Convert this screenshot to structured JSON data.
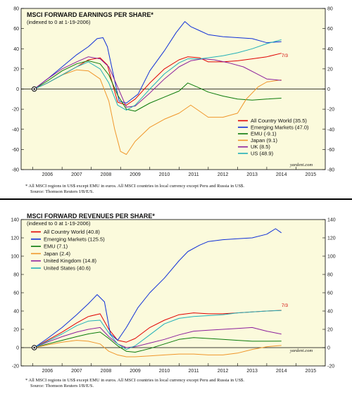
{
  "chart_data": [
    {
      "type": "line",
      "title": "MSCI FORWARD EARNINGS PER SHARE*",
      "subtitle": "(indexed to 0 at 1-19-2006)",
      "ylim": [
        -80,
        80
      ],
      "yticks": [
        -80,
        -60,
        -40,
        -20,
        0,
        20,
        40,
        60,
        80
      ],
      "xlim": [
        2005.6,
        2016.0
      ],
      "xticks": [
        "2006",
        "2007",
        "2008",
        "2009",
        "2010",
        "2011",
        "2012",
        "2013",
        "2014",
        "2015"
      ],
      "end_label": "7/3",
      "legend_position": "bottom-right",
      "footnote": "*  All MSCI regions in US$ except EMU in euros. All MSCI countries in local currency except Peru and Russia in US$.",
      "source": "Source: Thomson Reuters I/B/E/S.",
      "credit": "yardeni.com",
      "series": [
        {
          "name": "All Country World (35.5)",
          "color": "#e00000",
          "x": [
            2006.05,
            2006.5,
            2007.0,
            2007.5,
            2007.9,
            2008.3,
            2008.55,
            2008.7,
            2008.9,
            2009.2,
            2009.5,
            2010.0,
            2010.5,
            2011.0,
            2011.3,
            2011.7,
            2012.0,
            2012.5,
            2013.0,
            2013.5,
            2014.0,
            2014.5
          ],
          "y": [
            0,
            6,
            14,
            22,
            29,
            31,
            24,
            8,
            -13,
            -16,
            -10,
            6,
            20,
            29,
            32,
            31,
            27,
            27,
            28,
            30,
            32,
            35.5
          ]
        },
        {
          "name": "Emerging Markets (47.0)",
          "color": "#1030d8",
          "x": [
            2006.05,
            2006.5,
            2007.0,
            2007.5,
            2007.9,
            2008.2,
            2008.4,
            2008.55,
            2008.75,
            2008.95,
            2009.2,
            2009.6,
            2010.0,
            2010.5,
            2010.9,
            2011.2,
            2011.4,
            2011.7,
            2012.0,
            2012.5,
            2013.0,
            2013.5,
            2014.0,
            2014.5
          ],
          "y": [
            0,
            10,
            22,
            34,
            42,
            50,
            51,
            42,
            15,
            -12,
            -14,
            -5,
            18,
            38,
            56,
            67,
            62,
            58,
            54,
            52,
            51,
            50,
            46,
            47
          ]
        },
        {
          "name": "EMU (-9.1)",
          "color": "#0a7a0a",
          "x": [
            2006.05,
            2006.5,
            2007.0,
            2007.5,
            2007.9,
            2008.3,
            2008.6,
            2008.9,
            2009.2,
            2009.5,
            2010.0,
            2010.5,
            2011.0,
            2011.3,
            2011.7,
            2012.0,
            2012.5,
            2013.0,
            2013.5,
            2014.0,
            2014.5
          ],
          "y": [
            0,
            8,
            18,
            25,
            28,
            25,
            14,
            -6,
            -20,
            -22,
            -14,
            -8,
            -2,
            6,
            1,
            -3,
            -7,
            -10,
            -11,
            -10,
            -9.1
          ]
        },
        {
          "name": "Japan (9.1)",
          "color": "#f0962a",
          "x": [
            2006.05,
            2006.5,
            2007.0,
            2007.5,
            2007.9,
            2008.3,
            2008.6,
            2008.8,
            2009.0,
            2009.2,
            2009.5,
            2010.0,
            2010.5,
            2011.0,
            2011.4,
            2011.7,
            2012.0,
            2012.5,
            2013.0,
            2013.3,
            2013.7,
            2014.0,
            2014.5
          ],
          "y": [
            0,
            6,
            14,
            19,
            18,
            10,
            -12,
            -40,
            -62,
            -65,
            -52,
            -38,
            -30,
            -24,
            -16,
            -22,
            -28,
            -28,
            -24,
            -10,
            2,
            7,
            9.1
          ]
        },
        {
          "name": "UK (8.5)",
          "color": "#8c1f9c",
          "x": [
            2006.05,
            2006.5,
            2007.0,
            2007.5,
            2007.9,
            2008.3,
            2008.6,
            2008.9,
            2009.2,
            2009.5,
            2010.0,
            2010.5,
            2011.0,
            2011.4,
            2011.8,
            2012.2,
            2012.7,
            2013.2,
            2013.6,
            2014.0,
            2014.5
          ],
          "y": [
            0,
            10,
            20,
            27,
            32,
            30,
            22,
            2,
            -18,
            -17,
            -4,
            10,
            22,
            28,
            30,
            29,
            26,
            22,
            16,
            10,
            8.5
          ]
        },
        {
          "name": "US (48.9)",
          "color": "#22b0b8",
          "x": [
            2006.05,
            2006.5,
            2007.0,
            2007.5,
            2007.9,
            2008.3,
            2008.6,
            2008.9,
            2009.2,
            2009.5,
            2010.0,
            2010.5,
            2011.0,
            2011.3,
            2011.7,
            2012.0,
            2012.5,
            2013.0,
            2013.5,
            2014.0,
            2014.5
          ],
          "y": [
            0,
            6,
            14,
            22,
            27,
            20,
            6,
            -16,
            -21,
            -16,
            0,
            15,
            26,
            30,
            30,
            31,
            33,
            36,
            40,
            45,
            48.9
          ]
        }
      ]
    },
    {
      "type": "line",
      "title": "MSCI FORWARD REVENUES PER SHARE*",
      "subtitle": "(indexed to 0 at 1-19-2006)",
      "ylim": [
        -20,
        140
      ],
      "yticks": [
        -20,
        0,
        20,
        40,
        60,
        80,
        100,
        120,
        140
      ],
      "xlim": [
        2005.6,
        2016.0
      ],
      "xticks": [
        "2006",
        "2007",
        "2008",
        "2009",
        "2010",
        "2011",
        "2012",
        "2013",
        "2014",
        "2015"
      ],
      "end_label": "7/3",
      "legend_position": "top-left",
      "footnote": "*  All MSCI regions in US$ except EMU in euros. All MSCI countries in local currency except Peru and Russia in US$.",
      "source": "Source: Thomson Reuters I/B/E/S.",
      "credit": "yardeni.com",
      "series": [
        {
          "name": "All Country World (40.8)",
          "color": "#e00000",
          "x": [
            2006.05,
            2006.5,
            2007.0,
            2007.5,
            2007.9,
            2008.3,
            2008.6,
            2008.9,
            2009.2,
            2009.5,
            2010.0,
            2010.5,
            2011.0,
            2011.5,
            2012.0,
            2012.5,
            2013.0,
            2013.5,
            2014.0,
            2014.5
          ],
          "y": [
            0,
            8,
            17,
            27,
            34,
            37,
            20,
            8,
            6,
            10,
            22,
            30,
            36,
            38,
            37,
            37,
            38,
            39,
            40,
            40.8
          ]
        },
        {
          "name": "Emerging Markets (125.5)",
          "color": "#1030d8",
          "x": [
            2006.05,
            2006.5,
            2007.0,
            2007.5,
            2007.9,
            2008.2,
            2008.45,
            2008.65,
            2008.9,
            2009.2,
            2009.6,
            2010.0,
            2010.5,
            2011.0,
            2011.3,
            2011.7,
            2012.0,
            2012.5,
            2013.0,
            2013.5,
            2014.0,
            2014.3,
            2014.5
          ],
          "y": [
            0,
            10,
            22,
            36,
            48,
            58,
            50,
            15,
            8,
            22,
            44,
            60,
            76,
            95,
            105,
            112,
            116,
            118,
            119,
            120,
            124,
            130,
            125.5
          ]
        },
        {
          "name": "EMU (7.1)",
          "color": "#0a7a0a",
          "x": [
            2006.05,
            2006.5,
            2007.0,
            2007.5,
            2007.9,
            2008.3,
            2008.6,
            2008.9,
            2009.2,
            2009.5,
            2010.0,
            2010.5,
            2011.0,
            2011.5,
            2012.0,
            2012.5,
            2013.0,
            2013.5,
            2014.0,
            2014.5
          ],
          "y": [
            0,
            4,
            8,
            12,
            15,
            17,
            10,
            2,
            -4,
            -5,
            -1,
            4,
            9,
            11,
            10,
            9,
            8,
            7,
            7,
            7.1
          ]
        },
        {
          "name": "Japan (2.4)",
          "color": "#f0962a",
          "x": [
            2006.05,
            2006.5,
            2007.0,
            2007.5,
            2007.9,
            2008.3,
            2008.6,
            2008.9,
            2009.2,
            2009.5,
            2010.0,
            2010.5,
            2011.0,
            2011.5,
            2012.0,
            2012.5,
            2013.0,
            2013.5,
            2014.0,
            2014.5
          ],
          "y": [
            0,
            3,
            6,
            8,
            7,
            4,
            -4,
            -8,
            -10,
            -10,
            -9,
            -8,
            -7,
            -7,
            -8,
            -8,
            -6,
            -2,
            1,
            2.4
          ]
        },
        {
          "name": "United Kingdom (14.8)",
          "color": "#8c1f9c",
          "x": [
            2006.05,
            2006.5,
            2007.0,
            2007.5,
            2007.9,
            2008.3,
            2008.6,
            2008.9,
            2009.2,
            2009.5,
            2010.0,
            2010.5,
            2011.0,
            2011.5,
            2012.0,
            2012.5,
            2013.0,
            2013.5,
            2014.0,
            2014.5
          ],
          "y": [
            0,
            6,
            12,
            17,
            20,
            22,
            12,
            4,
            0,
            1,
            5,
            9,
            14,
            18,
            19,
            20,
            21,
            22,
            18,
            14.8
          ]
        },
        {
          "name": "United States (40.6)",
          "color": "#22b0b8",
          "x": [
            2006.05,
            2006.5,
            2007.0,
            2007.5,
            2007.9,
            2008.3,
            2008.6,
            2008.9,
            2009.2,
            2009.5,
            2010.0,
            2010.5,
            2011.0,
            2011.5,
            2012.0,
            2012.5,
            2013.0,
            2013.5,
            2014.0,
            2014.5
          ],
          "y": [
            0,
            7,
            15,
            24,
            29,
            30,
            16,
            4,
            -2,
            2,
            14,
            26,
            32,
            34,
            35,
            36,
            38,
            39,
            40,
            40.6
          ]
        }
      ]
    }
  ]
}
